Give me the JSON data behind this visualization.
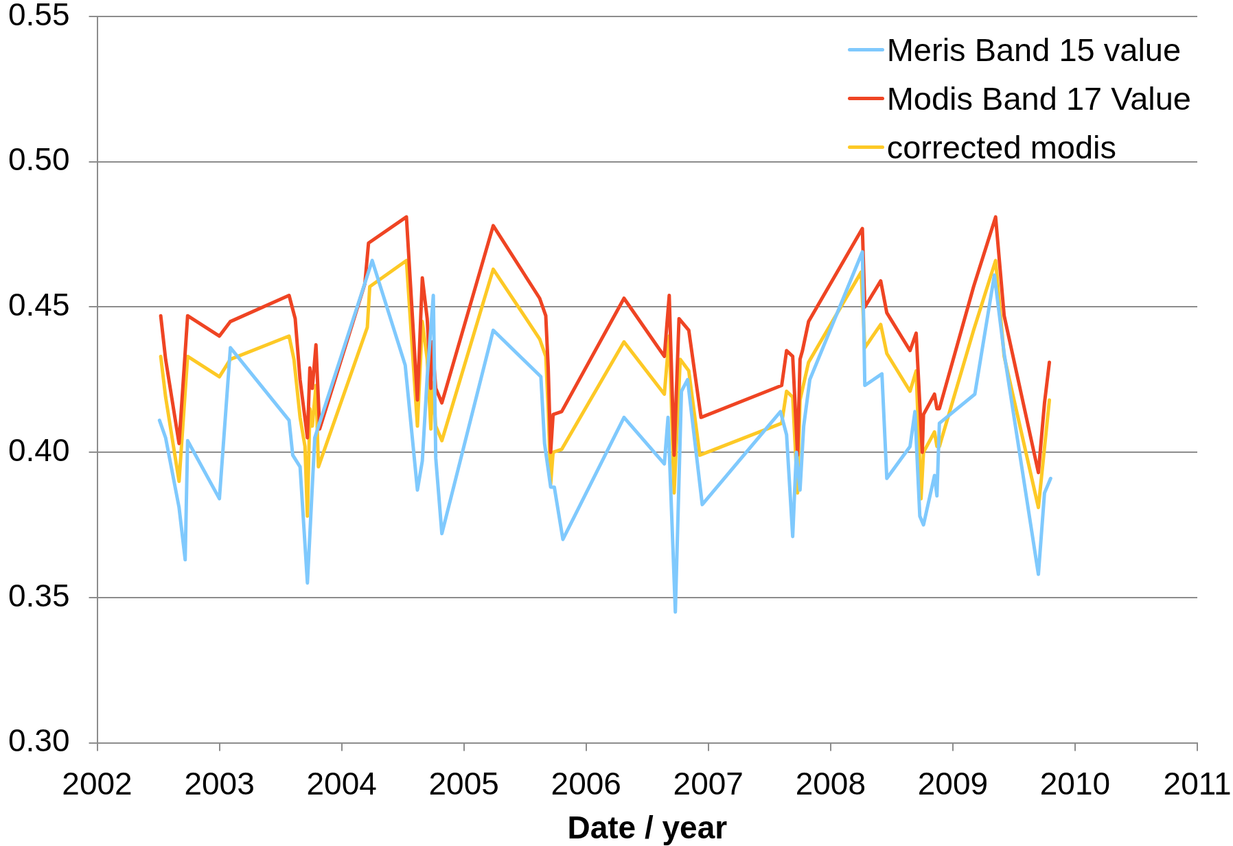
{
  "chart_data": {
    "type": "line",
    "xlabel": "Date / year",
    "xlim": [
      2002,
      2011
    ],
    "xticks": [
      2002,
      2003,
      2004,
      2005,
      2006,
      2007,
      2008,
      2009,
      2010,
      2011
    ],
    "ylim": [
      0.3,
      0.55
    ],
    "yticks": [
      {
        "value": 0.3,
        "label": "0.30"
      },
      0.35,
      {
        "value": 0.4,
        "label": "0.40"
      },
      0.45,
      {
        "value": 0.5,
        "label": "0.50"
      },
      0.55
    ],
    "grid": "y",
    "legend": "top right",
    "marker": "none",
    "line_style": "solid",
    "series": [
      {
        "name": "Meris Band 15 value",
        "color": "#7fc9fd",
        "x": [
          2002.51,
          2002.56,
          2002.67,
          2002.72,
          2002.74,
          2003.0,
          2003.09,
          2003.57,
          2003.6,
          2003.66,
          2003.72,
          2003.78,
          2004.25,
          2004.52,
          2004.62,
          2004.66,
          2004.7,
          2004.75,
          2004.77,
          2004.82,
          2005.24,
          2005.63,
          2005.66,
          2005.71,
          2005.74,
          2005.81,
          2006.31,
          2006.64,
          2006.67,
          2006.73,
          2006.78,
          2006.83,
          2006.95,
          2007.59,
          2007.64,
          2007.69,
          2007.72,
          2007.75,
          2007.78,
          2007.83,
          2008.26,
          2008.28,
          2008.42,
          2008.46,
          2008.65,
          2008.69,
          2008.73,
          2008.76,
          2008.85,
          2008.87,
          2008.89,
          2009.18,
          2009.34,
          2009.42,
          2009.7,
          2009.75,
          2009.8
        ],
        "values": [
          0.411,
          0.405,
          0.381,
          0.363,
          0.404,
          0.384,
          0.436,
          0.411,
          0.399,
          0.395,
          0.355,
          0.405,
          0.466,
          0.43,
          0.387,
          0.397,
          0.426,
          0.454,
          0.398,
          0.372,
          0.442,
          0.426,
          0.403,
          0.388,
          0.388,
          0.37,
          0.412,
          0.396,
          0.412,
          0.345,
          0.421,
          0.425,
          0.382,
          0.414,
          0.406,
          0.371,
          0.4,
          0.387,
          0.409,
          0.425,
          0.469,
          0.423,
          0.427,
          0.391,
          0.402,
          0.414,
          0.378,
          0.375,
          0.392,
          0.385,
          0.41,
          0.42,
          0.461,
          0.434,
          0.358,
          0.386,
          0.391
        ]
      },
      {
        "name": "Modis Band 17 Value",
        "color": "#ef4423",
        "x": [
          2002.52,
          2002.56,
          2002.67,
          2002.74,
          2003.0,
          2003.09,
          2003.57,
          2003.62,
          2003.66,
          2003.72,
          2003.74,
          2003.76,
          2003.79,
          2003.82,
          2004.19,
          2004.22,
          2004.53,
          2004.62,
          2004.66,
          2004.7,
          2004.73,
          2004.74,
          2004.77,
          2004.82,
          2005.24,
          2005.62,
          2005.67,
          2005.69,
          2005.71,
          2005.73,
          2005.8,
          2006.31,
          2006.64,
          2006.68,
          2006.72,
          2006.76,
          2006.84,
          2006.94,
          2007.6,
          2007.64,
          2007.69,
          2007.73,
          2007.75,
          2007.77,
          2007.82,
          2008.26,
          2008.28,
          2008.41,
          2008.46,
          2008.65,
          2008.7,
          2008.75,
          2008.76,
          2008.85,
          2008.87,
          2008.89,
          2009.17,
          2009.35,
          2009.42,
          2009.7,
          2009.75,
          2009.79
        ],
        "values": [
          0.447,
          0.432,
          0.403,
          0.447,
          0.44,
          0.445,
          0.454,
          0.446,
          0.425,
          0.405,
          0.429,
          0.422,
          0.437,
          0.408,
          0.458,
          0.472,
          0.481,
          0.418,
          0.46,
          0.446,
          0.422,
          0.438,
          0.422,
          0.417,
          0.478,
          0.453,
          0.447,
          0.429,
          0.4,
          0.413,
          0.414,
          0.453,
          0.433,
          0.454,
          0.399,
          0.446,
          0.442,
          0.412,
          0.423,
          0.435,
          0.433,
          0.399,
          0.432,
          0.435,
          0.445,
          0.477,
          0.45,
          0.459,
          0.448,
          0.435,
          0.441,
          0.4,
          0.413,
          0.42,
          0.415,
          0.415,
          0.457,
          0.481,
          0.447,
          0.393,
          0.417,
          0.431
        ]
      },
      {
        "name": "corrected modis",
        "color": "#fdc926",
        "x": [
          2002.52,
          2002.56,
          2002.67,
          2002.74,
          2003.0,
          2003.09,
          2003.57,
          2003.61,
          2003.66,
          2003.7,
          2003.72,
          2003.74,
          2003.76,
          2003.79,
          2003.81,
          2004.21,
          2004.23,
          2004.53,
          2004.62,
          2004.66,
          2004.7,
          2004.73,
          2004.74,
          2004.77,
          2004.82,
          2005.24,
          2005.62,
          2005.67,
          2005.69,
          2005.71,
          2005.73,
          2005.8,
          2006.31,
          2006.64,
          2006.68,
          2006.72,
          2006.77,
          2006.84,
          2006.93,
          2007.6,
          2007.64,
          2007.69,
          2007.73,
          2007.75,
          2007.82,
          2008.25,
          2008.28,
          2008.41,
          2008.46,
          2008.65,
          2008.7,
          2008.74,
          2008.76,
          2008.85,
          2008.87,
          2008.89,
          2009.17,
          2009.35,
          2009.42,
          2009.7,
          2009.79
        ],
        "values": [
          0.433,
          0.419,
          0.39,
          0.433,
          0.426,
          0.432,
          0.44,
          0.432,
          0.412,
          0.402,
          0.378,
          0.415,
          0.409,
          0.423,
          0.395,
          0.443,
          0.457,
          0.466,
          0.409,
          0.445,
          0.432,
          0.408,
          0.424,
          0.409,
          0.404,
          0.463,
          0.439,
          0.433,
          0.415,
          0.389,
          0.4,
          0.401,
          0.438,
          0.42,
          0.44,
          0.386,
          0.432,
          0.428,
          0.399,
          0.41,
          0.421,
          0.419,
          0.386,
          0.418,
          0.431,
          0.462,
          0.436,
          0.444,
          0.434,
          0.421,
          0.428,
          0.384,
          0.4,
          0.407,
          0.402,
          0.402,
          0.442,
          0.466,
          0.433,
          0.381,
          0.418
        ]
      }
    ]
  }
}
